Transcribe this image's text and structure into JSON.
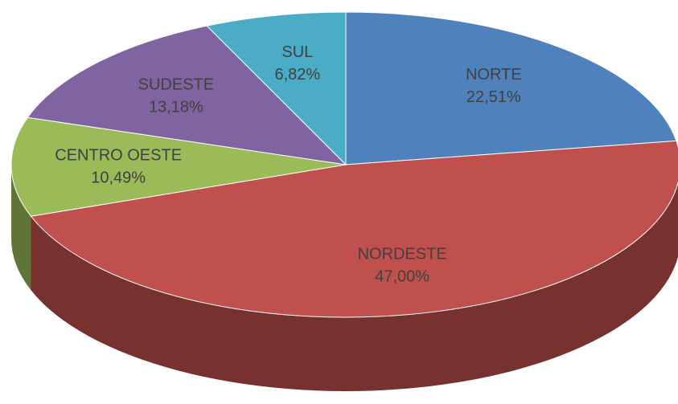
{
  "chart_data": {
    "type": "pie",
    "categories": [
      "NORTE",
      "NORDESTE",
      "CENTRO OESTE",
      "SUDESTE",
      "SUL"
    ],
    "values": [
      22.51,
      47.0,
      10.49,
      13.18,
      6.82
    ],
    "value_labels": [
      "22,51%",
      "47,00%",
      "10,49%",
      "13,18%",
      "6,82%"
    ],
    "colors": [
      "#4f81bd",
      "#c0504d",
      "#9bbb59",
      "#8064a2",
      "#4bacc6"
    ]
  }
}
